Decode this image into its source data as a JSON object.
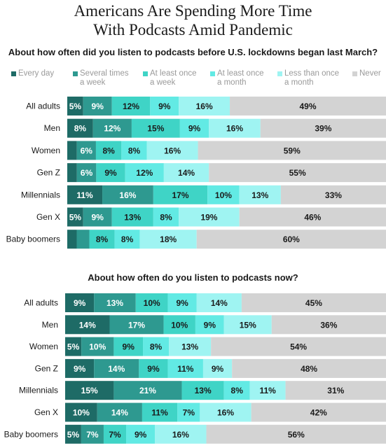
{
  "title_line1": "Americans Are Spending More Time",
  "title_line2": "With Podcasts Amid Pandemic",
  "legend": [
    {
      "label": "Every day",
      "color": "#1e6b66"
    },
    {
      "label": "Several times\na week",
      "color": "#2e9990"
    },
    {
      "label": "At least once\na week",
      "color": "#3fd4c6"
    },
    {
      "label": "At least once\na month",
      "color": "#62eae4"
    },
    {
      "label": "Less than once\na month",
      "color": "#9ff4f2"
    },
    {
      "label": "Never",
      "color": "#d3d3d3"
    }
  ],
  "chart_data": [
    {
      "type": "bar",
      "stacked": true,
      "orientation": "horizontal",
      "title": "About how often did you listen to podcasts before U.S. lockdowns began last March?",
      "categories": [
        "All adults",
        "Men",
        "Women",
        "Gen Z",
        "Millennials",
        "Gen X",
        "Baby boomers"
      ],
      "series": [
        {
          "name": "Every day",
          "values": [
            5,
            8,
            3,
            3,
            11,
            5,
            3
          ]
        },
        {
          "name": "Several times a week",
          "values": [
            9,
            12,
            6,
            6,
            16,
            9,
            4
          ]
        },
        {
          "name": "At least once a week",
          "values": [
            12,
            15,
            8,
            9,
            17,
            13,
            8
          ]
        },
        {
          "name": "At least once a month",
          "values": [
            9,
            9,
            8,
            12,
            10,
            8,
            8
          ]
        },
        {
          "name": "Less than once a month",
          "values": [
            16,
            16,
            16,
            14,
            13,
            19,
            18
          ]
        },
        {
          "name": "Never",
          "values": [
            49,
            39,
            59,
            55,
            33,
            46,
            60
          ]
        }
      ],
      "labels": [
        [
          "5%",
          "9%",
          "12%",
          "9%",
          "16%",
          "49%"
        ],
        [
          "8%",
          "12%",
          "15%",
          "9%",
          "16%",
          "39%"
        ],
        [
          "",
          "6%",
          "8%",
          "8%",
          "16%",
          "59%"
        ],
        [
          "",
          "6%",
          "9%",
          "12%",
          "14%",
          "55%"
        ],
        [
          "11%",
          "16%",
          "17%",
          "10%",
          "13%",
          "33%"
        ],
        [
          "5%",
          "9%",
          "13%",
          "8%",
          "19%",
          "46%"
        ],
        [
          "",
          "",
          "8%",
          "8%",
          "18%",
          "60%"
        ]
      ],
      "xlim": [
        0,
        100
      ]
    },
    {
      "type": "bar",
      "stacked": true,
      "orientation": "horizontal",
      "title": "About how often do you listen to podcasts now?",
      "categories": [
        "All adults",
        "Men",
        "Women",
        "Gen Z",
        "Millennials",
        "Gen X",
        "Baby boomers"
      ],
      "series": [
        {
          "name": "Every day",
          "values": [
            9,
            14,
            5,
            9,
            15,
            10,
            5
          ]
        },
        {
          "name": "Several times a week",
          "values": [
            13,
            17,
            10,
            14,
            21,
            14,
            7
          ]
        },
        {
          "name": "At least once a week",
          "values": [
            10,
            10,
            9,
            9,
            13,
            11,
            7
          ]
        },
        {
          "name": "At least once a month",
          "values": [
            9,
            9,
            8,
            11,
            8,
            7,
            9
          ]
        },
        {
          "name": "Less than once a month",
          "values": [
            14,
            15,
            13,
            9,
            11,
            16,
            16
          ]
        },
        {
          "name": "Never",
          "values": [
            45,
            36,
            54,
            48,
            31,
            42,
            56
          ]
        }
      ],
      "labels": [
        [
          "9%",
          "13%",
          "10%",
          "9%",
          "14%",
          "45%"
        ],
        [
          "14%",
          "17%",
          "10%",
          "9%",
          "15%",
          "36%"
        ],
        [
          "5%",
          "10%",
          "9%",
          "8%",
          "13%",
          "54%"
        ],
        [
          "9%",
          "14%",
          "9%",
          "11%",
          "9%",
          "48%"
        ],
        [
          "15%",
          "21%",
          "13%",
          "8%",
          "11%",
          "31%"
        ],
        [
          "10%",
          "14%",
          "11%",
          "7%",
          "16%",
          "42%"
        ],
        [
          "5%",
          "7%",
          "7%",
          "9%",
          "16%",
          "56%"
        ]
      ],
      "xlim": [
        0,
        100
      ]
    }
  ]
}
